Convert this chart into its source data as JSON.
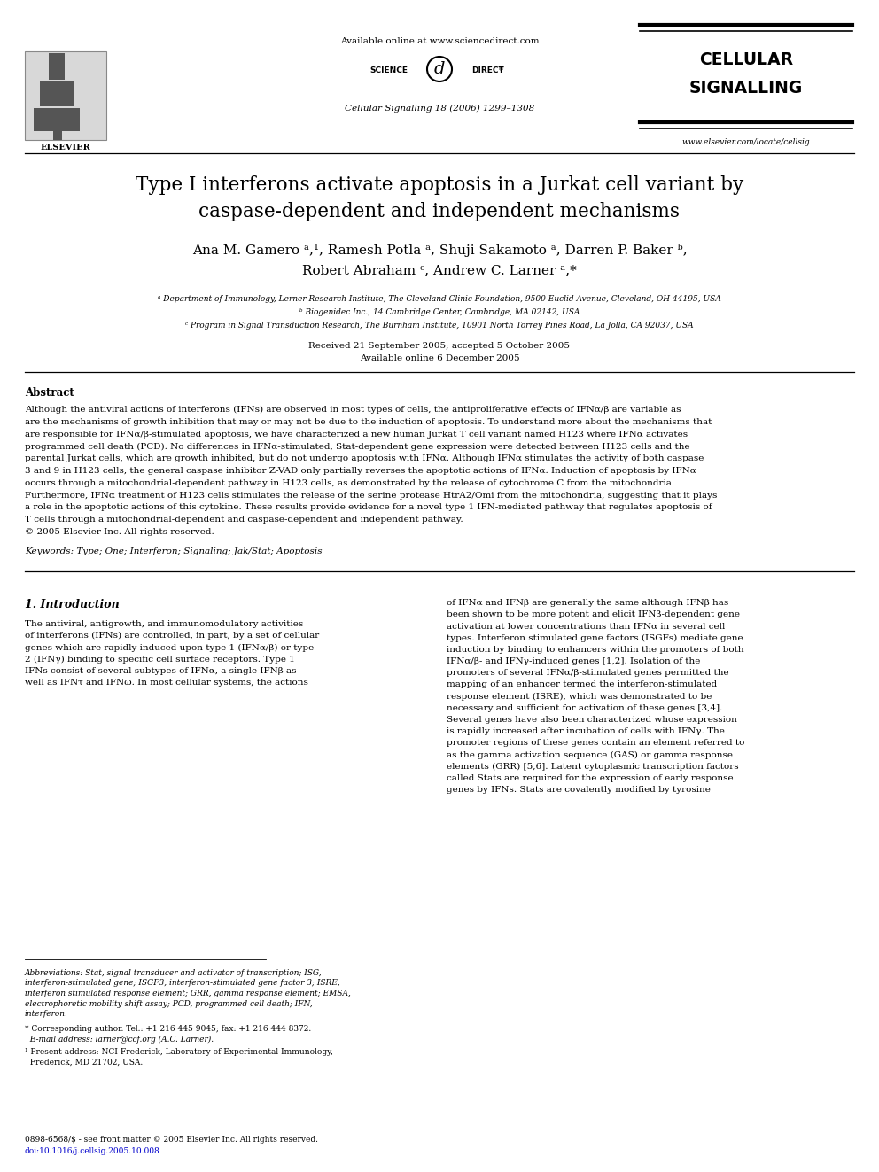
{
  "page_bg": "#ffffff",
  "header_available": "Available online at www.sciencedirect.com",
  "header_journal_info": "Cellular Signalling 18 (2006) 1299–1308",
  "journal_name_line1": "CELLULAR",
  "journal_name_line2": "SIGNALLING",
  "journal_url": "www.elsevier.com/locate/cellsig",
  "elsevier_label": "ELSEVIER",
  "science_left": "SCIENCE",
  "direct_right": "DIRECT",
  "title_line1": "Type I interferons activate apoptosis in a Jurkat cell variant by",
  "title_line2": "caspase-dependent and independent mechanisms",
  "authors_line1": "Ana M. Gamero ᵃ,¹, Ramesh Potla ᵃ, Shuji Sakamoto ᵃ, Darren P. Baker ᵇ,",
  "authors_line2": "Robert Abraham ᶜ, Andrew C. Larner ᵃ,*",
  "affil_a": "ᵃ Department of Immunology, Lerner Research Institute, The Cleveland Clinic Foundation, 9500 Euclid Avenue, Cleveland, OH 44195, USA",
  "affil_b": "ᵇ Biogenidec Inc., 14 Cambridge Center, Cambridge, MA 02142, USA",
  "affil_c": "ᶜ Program in Signal Transduction Research, The Burnham Institute, 10901 North Torrey Pines Road, La Jolla, CA 92037, USA",
  "received": "Received 21 September 2005; accepted 5 October 2005",
  "available": "Available online 6 December 2005",
  "abstract_title": "Abstract",
  "abstract_lines": [
    "Although the antiviral actions of interferons (IFNs) are observed in most types of cells, the antiproliferative effects of IFNα/β are variable as",
    "are the mechanisms of growth inhibition that may or may not be due to the induction of apoptosis. To understand more about the mechanisms that",
    "are responsible for IFNα/β-stimulated apoptosis, we have characterized a new human Jurkat T cell variant named H123 where IFNα activates",
    "programmed cell death (PCD). No differences in IFNα-stimulated, Stat-dependent gene expression were detected between H123 cells and the",
    "parental Jurkat cells, which are growth inhibited, but do not undergo apoptosis with IFNα. Although IFNα stimulates the activity of both caspase",
    "3 and 9 in H123 cells, the general caspase inhibitor Z-VAD only partially reverses the apoptotic actions of IFNα. Induction of apoptosis by IFNα",
    "occurs through a mitochondrial-dependent pathway in H123 cells, as demonstrated by the release of cytochrome C from the mitochondria.",
    "Furthermore, IFNα treatment of H123 cells stimulates the release of the serine protease HtrA2/Omi from the mitochondria, suggesting that it plays",
    "a role in the apoptotic actions of this cytokine. These results provide evidence for a novel type 1 IFN-mediated pathway that regulates apoptosis of",
    "T cells through a mitochondrial-dependent and caspase-dependent and independent pathway.",
    "© 2005 Elsevier Inc. All rights reserved."
  ],
  "keywords": "Keywords: Type; One; Interferon; Signaling; Jak/Stat; Apoptosis",
  "section1_title": "1. Introduction",
  "left_col_lines": [
    "The antiviral, antigrowth, and immunomodulatory activities",
    "of interferons (IFNs) are controlled, in part, by a set of cellular",
    "genes which are rapidly induced upon type 1 (IFNα/β) or type",
    "2 (IFNγ) binding to specific cell surface receptors. Type 1",
    "IFNs consist of several subtypes of IFNα, a single IFNβ as",
    "well as IFNτ and IFNω. In most cellular systems, the actions"
  ],
  "right_col_lines": [
    "of IFNα and IFNβ are generally the same although IFNβ has",
    "been shown to be more potent and elicit IFNβ-dependent gene",
    "activation at lower concentrations than IFNα in several cell",
    "types. Interferon stimulated gene factors (ISGFs) mediate gene",
    "induction by binding to enhancers within the promoters of both",
    "IFNα/β- and IFNγ-induced genes [1,2]. Isolation of the",
    "promoters of several IFNα/β-stimulated genes permitted the",
    "mapping of an enhancer termed the interferon-stimulated",
    "response element (ISRE), which was demonstrated to be",
    "necessary and sufficient for activation of these genes [3,4].",
    "Several genes have also been characterized whose expression",
    "is rapidly increased after incubation of cells with IFNγ. The",
    "promoter regions of these genes contain an element referred to",
    "as the gamma activation sequence (GAS) or gamma response",
    "elements (GRR) [5,6]. Latent cytoplasmic transcription factors",
    "called Stats are required for the expression of early response",
    "genes by IFNs. Stats are covalently modified by tyrosine"
  ],
  "footnote_lines": [
    "Abbreviations: Stat, signal transducer and activator of transcription; ISG,",
    "interferon-stimulated gene; ISGF3, interferon-stimulated gene factor 3; ISRE,",
    "interferon stimulated response element; GRR, gamma response element; EMSA,",
    "electrophoretic mobility shift assay; PCD, programmed cell death; IFN,",
    "interferon."
  ],
  "footnote_corr1": "* Corresponding author. Tel.: +1 216 445 9045; fax: +1 216 444 8372.",
  "footnote_corr2": "  E-mail address: larner@ccf.org (A.C. Larner).",
  "footnote_present1": "¹ Present address: NCI-Frederick, Laboratory of Experimental Immunology,",
  "footnote_present2": "  Frederick, MD 21702, USA.",
  "copyright1": "0898-6568/$ - see front matter © 2005 Elsevier Inc. All rights reserved.",
  "copyright2": "doi:10.1016/j.cellsig.2005.10.008"
}
